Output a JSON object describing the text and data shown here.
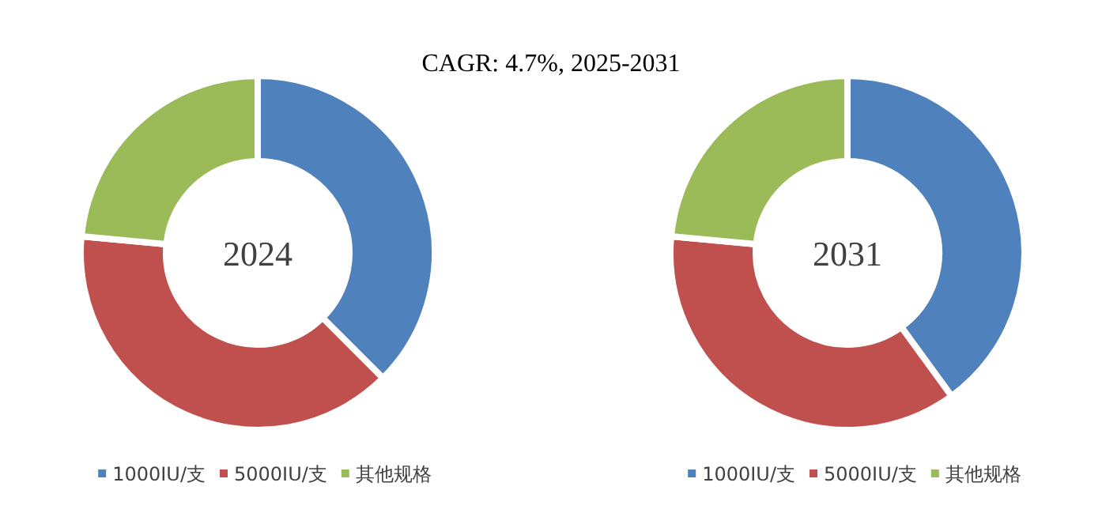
{
  "chart_data": [
    {
      "type": "donut",
      "title": "2024",
      "annotations": [
        "CAGR:  4.7%, 2025-2031"
      ],
      "categories": [
        "1000IU/支",
        "5000IU/支",
        "其他规格"
      ],
      "values": [
        37.5,
        39,
        23.5
      ],
      "colors": [
        "#4f81bd",
        "#c0504d",
        "#9bbb59"
      ],
      "legend": "bottom"
    },
    {
      "type": "donut",
      "title": "2031",
      "categories": [
        "1000IU/支",
        "5000IU/支",
        "其他规格"
      ],
      "values": [
        40,
        36.5,
        23.5
      ],
      "colors": [
        "#4f81bd",
        "#c0504d",
        "#9bbb59"
      ],
      "legend": "bottom"
    }
  ]
}
